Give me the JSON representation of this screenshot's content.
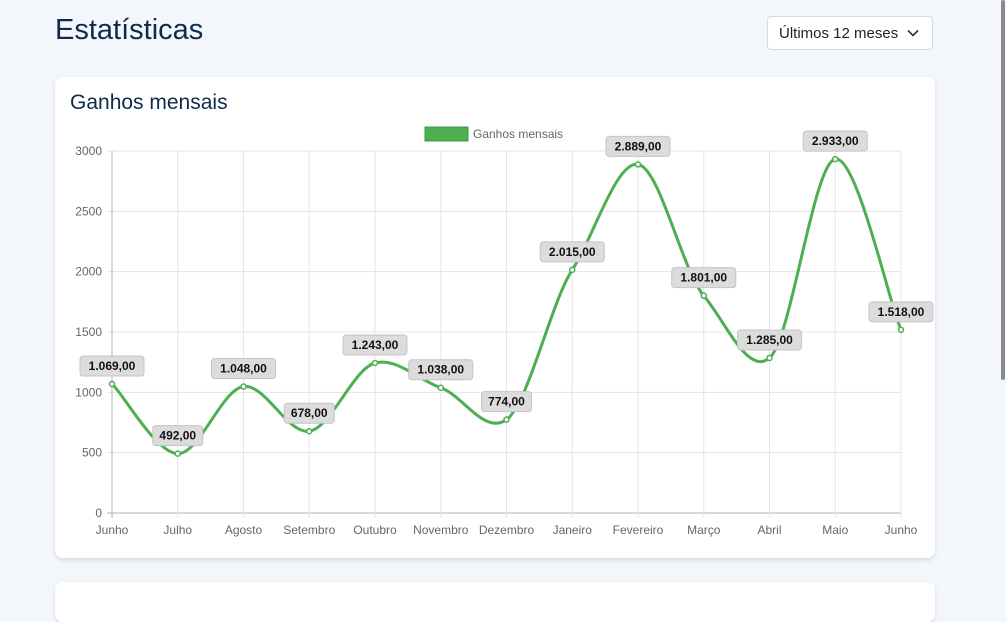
{
  "page": {
    "title": "Estatísticas"
  },
  "period_select": {
    "value": "Últimos 12 meses",
    "icon": "chevron-down-icon"
  },
  "card": {
    "title": "Ganhos mensais"
  },
  "chart_data": {
    "type": "line",
    "title": "Ganhos mensais",
    "legend": {
      "label": "Ganhos mensais",
      "placement": "top-center"
    },
    "categories": [
      "Junho",
      "Julho",
      "Agosto",
      "Setembro",
      "Outubro",
      "Novembro",
      "Dezembro",
      "Janeiro",
      "Fevereiro",
      "Março",
      "Abril",
      "Maio",
      "Junho"
    ],
    "values": [
      1069,
      492,
      1048,
      678,
      1243,
      1038,
      774,
      2015,
      2889,
      1801,
      1285,
      2933,
      1518
    ],
    "data_labels": [
      "1.069,00",
      "492,00",
      "1.048,00",
      "678,00",
      "1.243,00",
      "1.038,00",
      "774,00",
      "2.015,00",
      "2.889,00",
      "1.801,00",
      "1.285,00",
      "2.933,00",
      "1.518,00"
    ],
    "yticks": [
      0,
      500,
      1000,
      1500,
      2000,
      2500,
      3000
    ],
    "ylim": [
      0,
      3000
    ],
    "grid": true,
    "color": "#4caf50",
    "xlabel": "",
    "ylabel": ""
  }
}
